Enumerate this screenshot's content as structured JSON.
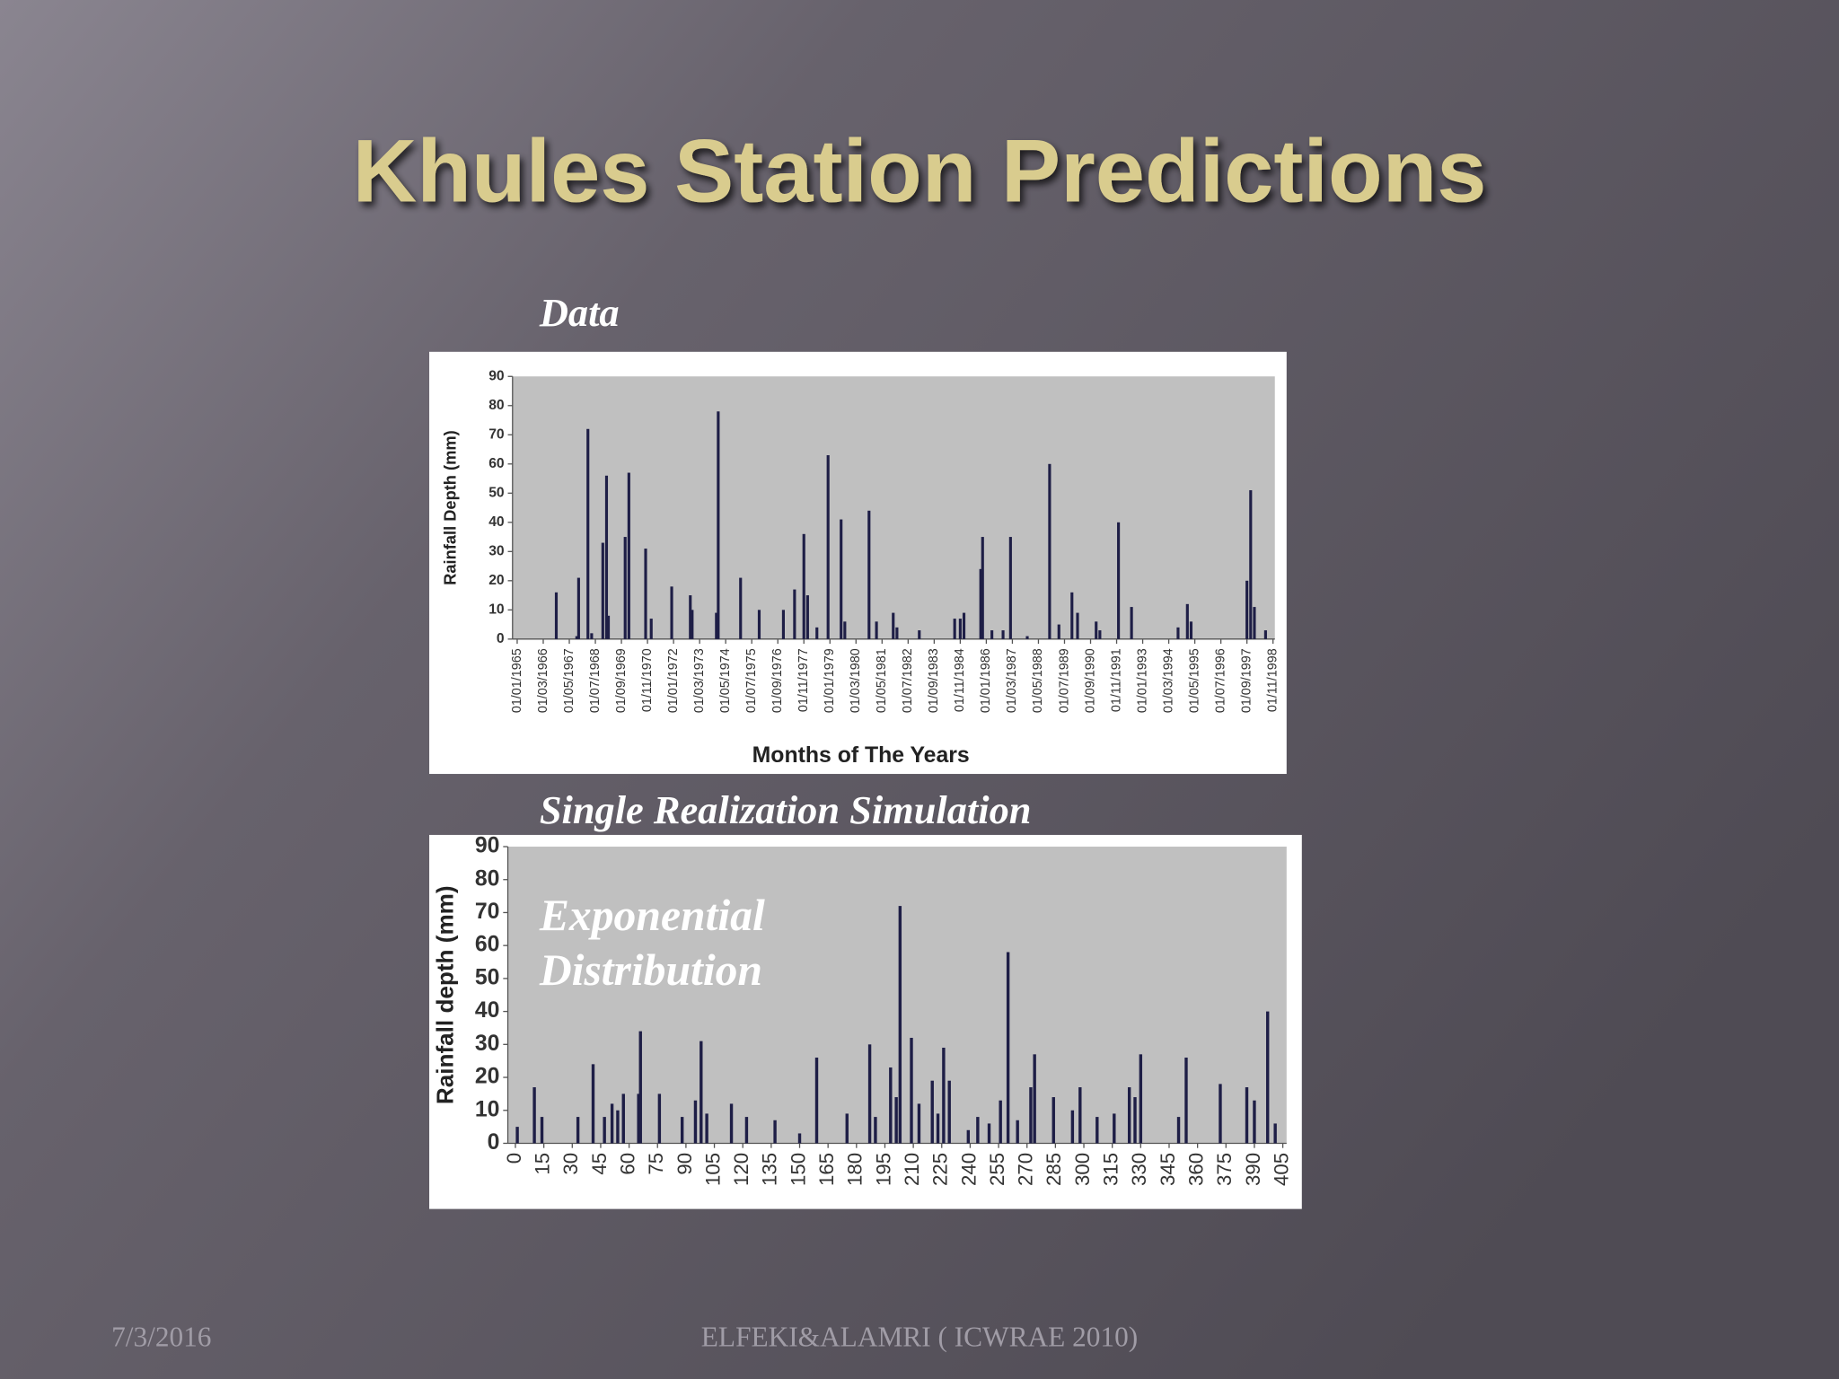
{
  "title": "Khules Station Predictions",
  "footer": {
    "date": "7/3/2016",
    "credit": "ELFEKI&ALAMRI ( ICWRAE 2010)"
  },
  "chart_data": [
    {
      "type": "bar",
      "title": "Data",
      "xlabel": "Months of The Years",
      "ylabel": "Rainfall Depth (mm)",
      "color": "#1e1e46",
      "x": [
        21,
        32,
        33,
        38,
        40,
        46,
        48,
        49,
        58,
        60,
        69,
        72,
        83,
        93,
        94,
        107,
        108,
        120,
        130,
        143,
        149,
        154,
        156,
        161,
        167,
        174,
        176,
        189,
        193,
        202,
        204,
        216,
        235,
        238,
        240,
        249,
        250,
        255,
        261,
        265,
        274,
        286,
        291,
        298,
        301,
        311,
        313,
        323,
        330,
        355,
        360,
        362,
        392,
        394,
        396,
        402
      ],
      "values": [
        16,
        1,
        21,
        72,
        2,
        33,
        56,
        8,
        35,
        57,
        31,
        7,
        18,
        15,
        10,
        9,
        78,
        21,
        10,
        10,
        17,
        36,
        15,
        4,
        63,
        41,
        6,
        44,
        6,
        9,
        4,
        3,
        7,
        7,
        9,
        24,
        35,
        3,
        3,
        35,
        1,
        60,
        5,
        16,
        9,
        6,
        3,
        40,
        11,
        4,
        12,
        6,
        20,
        51,
        11,
        3
      ],
      "xlim": [
        -2.5,
        407
      ],
      "ylim": [
        0,
        90
      ],
      "xticks": [
        {
          "value": 0,
          "label": "01/01/1965"
        },
        {
          "value": 14,
          "label": "01/03/1966"
        },
        {
          "value": 28,
          "label": "01/05/1967"
        },
        {
          "value": 42,
          "label": "01/07/1968"
        },
        {
          "value": 56,
          "label": "01/09/1969"
        },
        {
          "value": 70,
          "label": "01/11/1970"
        },
        {
          "value": 84,
          "label": "01/01/1972"
        },
        {
          "value": 98,
          "label": "01/03/1973"
        },
        {
          "value": 112,
          "label": "01/05/1974"
        },
        {
          "value": 126,
          "label": "01/07/1975"
        },
        {
          "value": 140,
          "label": "01/09/1976"
        },
        {
          "value": 154,
          "label": "01/11/1977"
        },
        {
          "value": 168,
          "label": "01/01/1979"
        },
        {
          "value": 182,
          "label": "01/03/1980"
        },
        {
          "value": 196,
          "label": "01/05/1981"
        },
        {
          "value": 210,
          "label": "01/07/1982"
        },
        {
          "value": 224,
          "label": "01/09/1983"
        },
        {
          "value": 238,
          "label": "01/11/1984"
        },
        {
          "value": 252,
          "label": "01/01/1986"
        },
        {
          "value": 266,
          "label": "01/03/1987"
        },
        {
          "value": 280,
          "label": "01/05/1988"
        },
        {
          "value": 294,
          "label": "01/07/1989"
        },
        {
          "value": 308,
          "label": "01/09/1990"
        },
        {
          "value": 322,
          "label": "01/11/1991"
        },
        {
          "value": 336,
          "label": "01/01/1993"
        },
        {
          "value": 350,
          "label": "01/03/1994"
        },
        {
          "value": 364,
          "label": "01/05/1995"
        },
        {
          "value": 378,
          "label": "01/07/1996"
        },
        {
          "value": 392,
          "label": "01/09/1997"
        },
        {
          "value": 406,
          "label": "01/11/1998"
        }
      ],
      "yticks": [
        0,
        10,
        20,
        30,
        40,
        50,
        60,
        70,
        80,
        90
      ]
    },
    {
      "type": "bar",
      "title": "Single Realization Simulation",
      "annotation": [
        "Exponential",
        "Distribution"
      ],
      "ylabel": "Rainfall depth (mm)",
      "color": "#1e1e46",
      "x": [
        1,
        10,
        14,
        33,
        41,
        47,
        51,
        54,
        57,
        65,
        66,
        76,
        88,
        95,
        98,
        101,
        114,
        122,
        137,
        150,
        159,
        175,
        187,
        190,
        198,
        201,
        203,
        209,
        213,
        220,
        223,
        226,
        229,
        239,
        244,
        250,
        256,
        260,
        265,
        272,
        274,
        284,
        294,
        298,
        307,
        316,
        324,
        327,
        330,
        350,
        354,
        372,
        386,
        390,
        397,
        401
      ],
      "values": [
        5,
        17,
        8,
        8,
        24,
        8,
        12,
        10,
        15,
        15,
        34,
        15,
        8,
        13,
        31,
        9,
        12,
        8,
        7,
        3,
        26,
        9,
        30,
        8,
        23,
        14,
        72,
        32,
        12,
        19,
        9,
        29,
        19,
        4,
        8,
        6,
        13,
        58,
        7,
        17,
        27,
        14,
        10,
        17,
        8,
        9,
        17,
        14,
        27,
        8,
        26,
        18,
        17,
        13,
        40,
        6
      ],
      "xlim": [
        -4,
        407
      ],
      "ylim": [
        0,
        90
      ],
      "xticks": [
        0,
        15,
        30,
        45,
        60,
        75,
        90,
        105,
        120,
        135,
        150,
        165,
        180,
        195,
        210,
        225,
        240,
        255,
        270,
        285,
        300,
        315,
        330,
        345,
        360,
        375,
        390,
        405
      ],
      "yticks": [
        0,
        10,
        20,
        30,
        40,
        50,
        60,
        70,
        80,
        90
      ]
    }
  ]
}
